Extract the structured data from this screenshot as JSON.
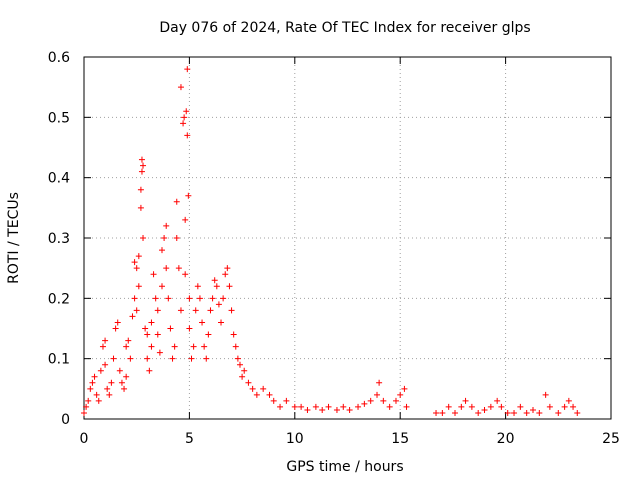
{
  "chart_data": {
    "type": "scatter",
    "title": "Day 076 of 2024, Rate Of TEC Index for receiver glps",
    "xlabel": "GPS time / hours",
    "ylabel": "ROTI / TECUs",
    "xlim": [
      0,
      25
    ],
    "ylim": [
      0,
      0.6
    ],
    "xticks": [
      0,
      5,
      10,
      15,
      20,
      25
    ],
    "yticks": [
      0,
      0.1,
      0.2,
      0.3,
      0.4,
      0.5,
      0.6
    ],
    "ytick_labels": [
      "0",
      "0.1",
      "0.2",
      "0.3",
      "0.4",
      "0.5",
      "0.6"
    ],
    "grid": true,
    "marker": "+",
    "series": [
      {
        "name": "ROTI",
        "color": "#ff0000",
        "points": [
          [
            0.0,
            0.01
          ],
          [
            0.1,
            0.02
          ],
          [
            0.2,
            0.03
          ],
          [
            0.3,
            0.05
          ],
          [
            0.4,
            0.06
          ],
          [
            0.5,
            0.07
          ],
          [
            0.6,
            0.04
          ],
          [
            0.7,
            0.03
          ],
          [
            0.8,
            0.08
          ],
          [
            0.9,
            0.12
          ],
          [
            1.0,
            0.13
          ],
          [
            1.0,
            0.09
          ],
          [
            1.1,
            0.05
          ],
          [
            1.2,
            0.04
          ],
          [
            1.3,
            0.06
          ],
          [
            1.4,
            0.1
          ],
          [
            1.5,
            0.15
          ],
          [
            1.6,
            0.16
          ],
          [
            1.7,
            0.08
          ],
          [
            1.8,
            0.06
          ],
          [
            1.9,
            0.05
          ],
          [
            2.0,
            0.07
          ],
          [
            2.0,
            0.12
          ],
          [
            2.1,
            0.13
          ],
          [
            2.2,
            0.1
          ],
          [
            2.3,
            0.17
          ],
          [
            2.4,
            0.2
          ],
          [
            2.4,
            0.26
          ],
          [
            2.5,
            0.25
          ],
          [
            2.5,
            0.18
          ],
          [
            2.6,
            0.22
          ],
          [
            2.6,
            0.27
          ],
          [
            2.7,
            0.35
          ],
          [
            2.7,
            0.38
          ],
          [
            2.75,
            0.41
          ],
          [
            2.75,
            0.43
          ],
          [
            2.8,
            0.42
          ],
          [
            2.8,
            0.3
          ],
          [
            2.9,
            0.15
          ],
          [
            3.0,
            0.14
          ],
          [
            3.0,
            0.1
          ],
          [
            3.1,
            0.08
          ],
          [
            3.2,
            0.12
          ],
          [
            3.2,
            0.16
          ],
          [
            3.3,
            0.24
          ],
          [
            3.4,
            0.2
          ],
          [
            3.5,
            0.18
          ],
          [
            3.5,
            0.14
          ],
          [
            3.6,
            0.11
          ],
          [
            3.7,
            0.22
          ],
          [
            3.7,
            0.28
          ],
          [
            3.8,
            0.3
          ],
          [
            3.9,
            0.32
          ],
          [
            3.9,
            0.25
          ],
          [
            4.0,
            0.2
          ],
          [
            4.1,
            0.15
          ],
          [
            4.2,
            0.1
          ],
          [
            4.3,
            0.12
          ],
          [
            4.4,
            0.36
          ],
          [
            4.4,
            0.3
          ],
          [
            4.5,
            0.25
          ],
          [
            4.6,
            0.18
          ],
          [
            4.6,
            0.55
          ],
          [
            4.7,
            0.49
          ],
          [
            4.75,
            0.5
          ],
          [
            4.8,
            0.24
          ],
          [
            4.8,
            0.33
          ],
          [
            4.85,
            0.51
          ],
          [
            4.9,
            0.58
          ],
          [
            4.9,
            0.47
          ],
          [
            4.95,
            0.37
          ],
          [
            5.0,
            0.2
          ],
          [
            5.0,
            0.15
          ],
          [
            5.1,
            0.1
          ],
          [
            5.2,
            0.12
          ],
          [
            5.3,
            0.18
          ],
          [
            5.4,
            0.22
          ],
          [
            5.5,
            0.2
          ],
          [
            5.6,
            0.16
          ],
          [
            5.7,
            0.12
          ],
          [
            5.8,
            0.1
          ],
          [
            5.9,
            0.14
          ],
          [
            6.0,
            0.18
          ],
          [
            6.1,
            0.2
          ],
          [
            6.2,
            0.23
          ],
          [
            6.3,
            0.22
          ],
          [
            6.4,
            0.19
          ],
          [
            6.5,
            0.16
          ],
          [
            6.6,
            0.2
          ],
          [
            6.7,
            0.24
          ],
          [
            6.8,
            0.25
          ],
          [
            6.9,
            0.22
          ],
          [
            7.0,
            0.18
          ],
          [
            7.1,
            0.14
          ],
          [
            7.2,
            0.12
          ],
          [
            7.3,
            0.1
          ],
          [
            7.4,
            0.09
          ],
          [
            7.5,
            0.07
          ],
          [
            7.6,
            0.08
          ],
          [
            7.8,
            0.06
          ],
          [
            8.0,
            0.05
          ],
          [
            8.2,
            0.04
          ],
          [
            8.5,
            0.05
          ],
          [
            8.8,
            0.04
          ],
          [
            9.0,
            0.03
          ],
          [
            9.3,
            0.02
          ],
          [
            9.6,
            0.03
          ],
          [
            10.0,
            0.02
          ],
          [
            10.3,
            0.02
          ],
          [
            10.6,
            0.015
          ],
          [
            11.0,
            0.02
          ],
          [
            11.3,
            0.015
          ],
          [
            11.6,
            0.02
          ],
          [
            12.0,
            0.015
          ],
          [
            12.3,
            0.02
          ],
          [
            12.6,
            0.015
          ],
          [
            13.0,
            0.02
          ],
          [
            13.3,
            0.025
          ],
          [
            13.6,
            0.03
          ],
          [
            13.9,
            0.04
          ],
          [
            14.0,
            0.06
          ],
          [
            14.2,
            0.03
          ],
          [
            14.5,
            0.02
          ],
          [
            14.8,
            0.03
          ],
          [
            15.0,
            0.04
          ],
          [
            15.2,
            0.05
          ],
          [
            15.3,
            0.02
          ],
          [
            16.7,
            0.01
          ],
          [
            17.0,
            0.01
          ],
          [
            17.3,
            0.02
          ],
          [
            17.6,
            0.01
          ],
          [
            17.9,
            0.02
          ],
          [
            18.1,
            0.03
          ],
          [
            18.4,
            0.02
          ],
          [
            18.7,
            0.01
          ],
          [
            19.0,
            0.015
          ],
          [
            19.3,
            0.02
          ],
          [
            19.6,
            0.03
          ],
          [
            19.8,
            0.02
          ],
          [
            20.1,
            0.01
          ],
          [
            20.4,
            0.01
          ],
          [
            20.7,
            0.02
          ],
          [
            21.0,
            0.01
          ],
          [
            21.3,
            0.015
          ],
          [
            21.6,
            0.01
          ],
          [
            21.9,
            0.04
          ],
          [
            22.1,
            0.02
          ],
          [
            22.5,
            0.01
          ],
          [
            22.8,
            0.02
          ],
          [
            23.0,
            0.03
          ],
          [
            23.2,
            0.02
          ],
          [
            23.4,
            0.01
          ]
        ]
      }
    ]
  }
}
